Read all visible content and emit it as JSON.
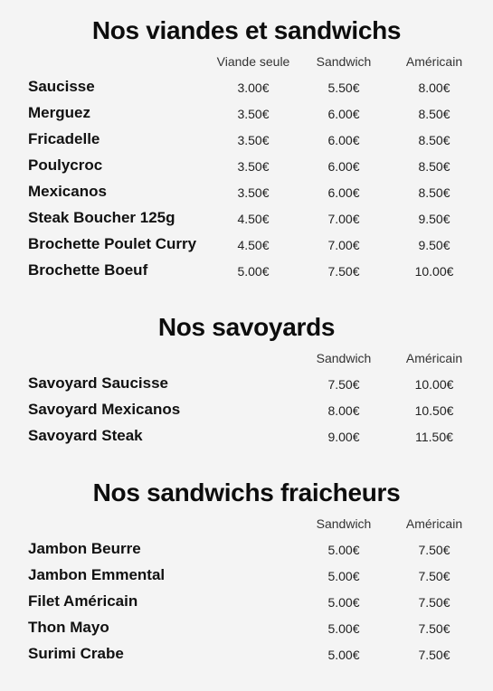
{
  "sections": [
    {
      "title": "Nos viandes et sandwichs",
      "columns": [
        "Viande seule",
        "Sandwich",
        "Américain"
      ],
      "items": [
        {
          "name": "Saucisse",
          "prices": [
            "3.00€",
            "5.50€",
            "8.00€"
          ]
        },
        {
          "name": "Merguez",
          "prices": [
            "3.50€",
            "6.00€",
            "8.50€"
          ]
        },
        {
          "name": "Fricadelle",
          "prices": [
            "3.50€",
            "6.00€",
            "8.50€"
          ]
        },
        {
          "name": "Poulycroc",
          "prices": [
            "3.50€",
            "6.00€",
            "8.50€"
          ]
        },
        {
          "name": "Mexicanos",
          "prices": [
            "3.50€",
            "6.00€",
            "8.50€"
          ]
        },
        {
          "name": "Steak Boucher 125g",
          "prices": [
            "4.50€",
            "7.00€",
            "9.50€"
          ]
        },
        {
          "name": "Brochette Poulet Curry",
          "prices": [
            "4.50€",
            "7.00€",
            "9.50€"
          ]
        },
        {
          "name": "Brochette Boeuf",
          "prices": [
            "5.00€",
            "7.50€",
            "10.00€"
          ]
        }
      ]
    },
    {
      "title": "Nos savoyards",
      "columns": [
        "Sandwich",
        "Américain"
      ],
      "items": [
        {
          "name": "Savoyard Saucisse",
          "prices": [
            "7.50€",
            "10.00€"
          ]
        },
        {
          "name": "Savoyard Mexicanos",
          "prices": [
            "8.00€",
            "10.50€"
          ]
        },
        {
          "name": "Savoyard Steak",
          "prices": [
            "9.00€",
            "11.50€"
          ]
        }
      ]
    },
    {
      "title": "Nos sandwichs fraicheurs",
      "columns": [
        "Sandwich",
        "Américain"
      ],
      "items": [
        {
          "name": "Jambon Beurre",
          "prices": [
            "5.00€",
            "7.50€"
          ]
        },
        {
          "name": "Jambon Emmental",
          "prices": [
            "5.00€",
            "7.50€"
          ]
        },
        {
          "name": "Filet Américain",
          "prices": [
            "5.00€",
            "7.50€"
          ]
        },
        {
          "name": "Thon Mayo",
          "prices": [
            "5.00€",
            "7.50€"
          ]
        },
        {
          "name": "Surimi Crabe",
          "prices": [
            "5.00€",
            "7.50€"
          ]
        }
      ]
    }
  ]
}
